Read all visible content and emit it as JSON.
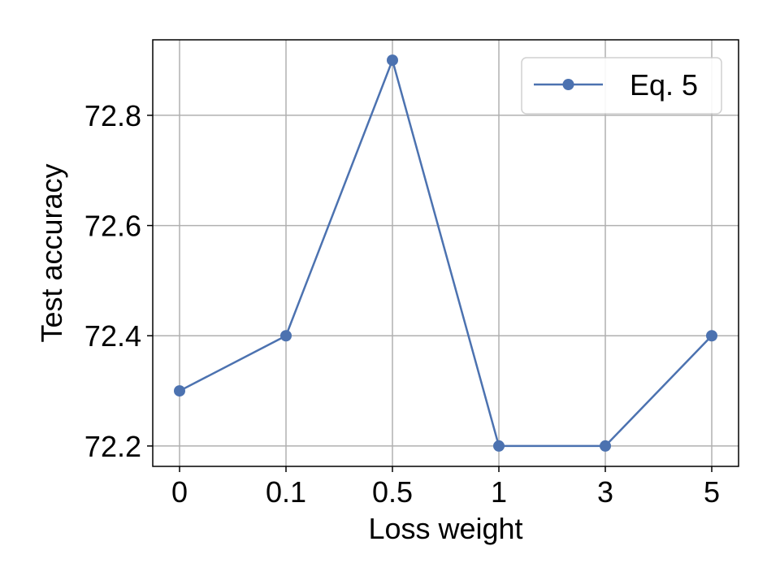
{
  "chart_data": {
    "type": "line",
    "categories": [
      "0",
      "0.1",
      "0.5",
      "1",
      "3",
      "5"
    ],
    "series": [
      {
        "name": "Eq. 5",
        "values": [
          72.3,
          72.4,
          72.9,
          72.2,
          72.2,
          72.4
        ],
        "color": "#4c72b0",
        "marker": "circle"
      }
    ],
    "xlabel": "Loss weight",
    "ylabel": "Test accuracy",
    "ylim": [
      72.163,
      72.937
    ],
    "yticks": [
      72.2,
      72.4,
      72.6,
      72.8
    ],
    "ytick_labels": [
      "72.2",
      "72.4",
      "72.6",
      "72.8"
    ],
    "grid": true,
    "legend_position": "top-right"
  }
}
